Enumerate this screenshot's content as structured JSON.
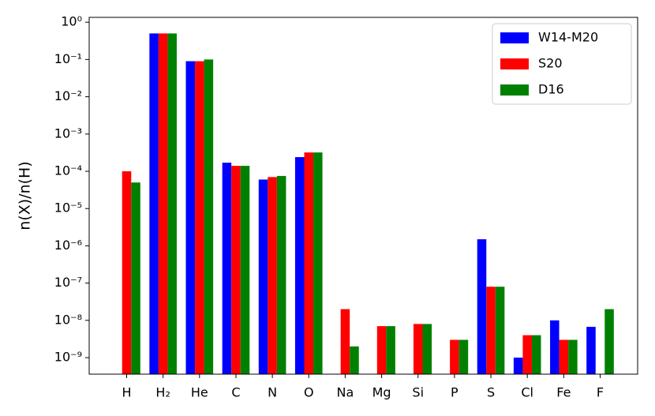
{
  "chart_data": {
    "type": "bar",
    "y_label": "n(X)/n(H)",
    "categories": [
      "H",
      "H₂",
      "He",
      "C",
      "N",
      "O",
      "Na",
      "Mg",
      "Si",
      "P",
      "S",
      "Cl",
      "Fe",
      "F"
    ],
    "series": [
      {
        "name": "W14-M20",
        "color": "#0000ff",
        "values": [
          null,
          0.5,
          0.09,
          0.00017,
          6e-05,
          0.00024,
          null,
          null,
          null,
          null,
          1.5e-06,
          1e-09,
          1e-08,
          6.7e-09
        ]
      },
      {
        "name": "S20",
        "color": "#ff0000",
        "values": [
          0.0001,
          0.5,
          0.09,
          0.00014,
          7e-05,
          0.00032,
          2e-08,
          7e-09,
          8e-09,
          3e-09,
          8e-08,
          4e-09,
          3e-09,
          null
        ]
      },
      {
        "name": "D16",
        "color": "#008000",
        "values": [
          5e-05,
          0.5,
          0.1,
          0.00014,
          7.5e-05,
          0.00032,
          2e-09,
          7e-09,
          8e-09,
          3e-09,
          8e-08,
          4e-09,
          3e-09,
          2e-08
        ]
      }
    ],
    "log_y": true,
    "grid": false,
    "legend": "upper right",
    "ylim": [
      3.6e-10,
      1.35
    ],
    "yticks": [
      {
        "value": 1e-09,
        "label": "10⁻⁹"
      },
      {
        "value": 1e-08,
        "label": "10⁻⁸"
      },
      {
        "value": 1e-07,
        "label": "10⁻⁷"
      },
      {
        "value": 1e-06,
        "label": "10⁻⁶"
      },
      {
        "value": 1e-05,
        "label": "10⁻⁵"
      },
      {
        "value": 0.0001,
        "label": "10⁻⁴"
      },
      {
        "value": 0.001,
        "label": "10⁻³"
      },
      {
        "value": 0.01,
        "label": "10⁻²"
      },
      {
        "value": 0.1,
        "label": "10⁻¹"
      },
      {
        "value": 1,
        "label": "10⁰"
      }
    ]
  }
}
